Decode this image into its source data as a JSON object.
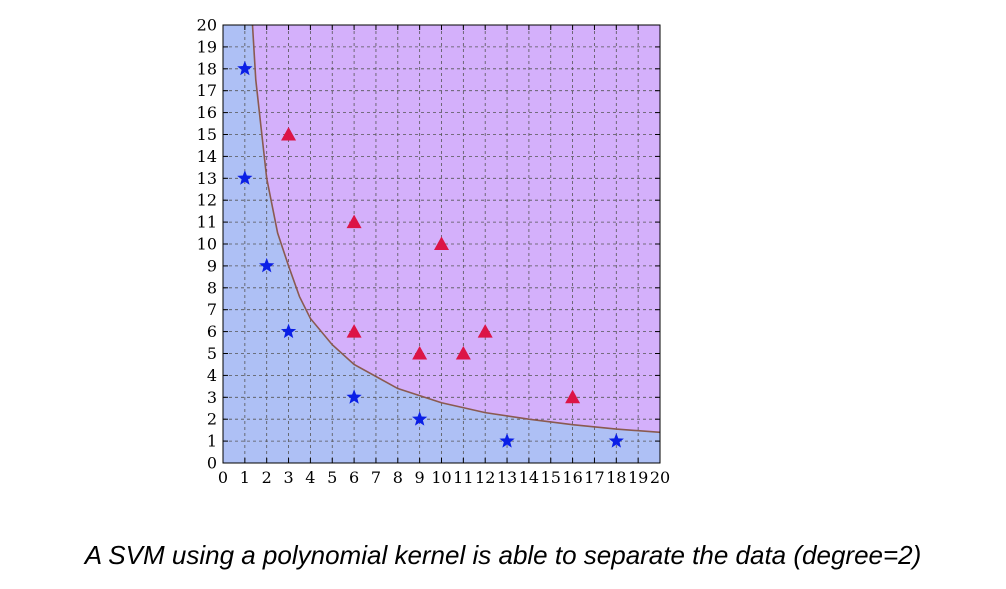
{
  "caption": "A SVM using a polynomial kernel is able to separate the data (degree=2)",
  "colors": {
    "region_low": "#aec0f5",
    "region_high": "#d4b0fb",
    "boundary": "#8a5a50",
    "star": "#0a1ee6",
    "triangle": "#dc1446",
    "grid": "#555555"
  },
  "chart_data": {
    "type": "scatter",
    "xlim": [
      0,
      20
    ],
    "ylim": [
      0,
      20
    ],
    "x_ticks": [
      0,
      1,
      2,
      3,
      4,
      5,
      6,
      7,
      8,
      9,
      10,
      11,
      12,
      13,
      14,
      15,
      16,
      17,
      18,
      19,
      20
    ],
    "y_ticks": [
      0,
      1,
      2,
      3,
      4,
      5,
      6,
      7,
      8,
      9,
      10,
      11,
      12,
      13,
      14,
      15,
      16,
      17,
      18,
      19,
      20
    ],
    "grid": true,
    "series": [
      {
        "marker": "star",
        "color": "#0a1ee6",
        "points": [
          [
            1,
            18
          ],
          [
            1,
            13
          ],
          [
            2,
            9
          ],
          [
            3,
            6
          ],
          [
            6,
            3
          ],
          [
            9,
            2
          ],
          [
            13,
            1
          ],
          [
            18,
            1
          ]
        ]
      },
      {
        "marker": "triangle",
        "color": "#dc1446",
        "points": [
          [
            3,
            15
          ],
          [
            6,
            11
          ],
          [
            10,
            10
          ],
          [
            6,
            6
          ],
          [
            9,
            5
          ],
          [
            11,
            5
          ],
          [
            12,
            6
          ],
          [
            16,
            3
          ]
        ]
      }
    ],
    "decision_boundary": {
      "points": [
        [
          1.35,
          20
        ],
        [
          1.5,
          17.5
        ],
        [
          2,
          13
        ],
        [
          2.5,
          10.5
        ],
        [
          3,
          9
        ],
        [
          3.5,
          7.6
        ],
        [
          4,
          6.6
        ],
        [
          5,
          5.4
        ],
        [
          6,
          4.5
        ],
        [
          8,
          3.4
        ],
        [
          10,
          2.75
        ],
        [
          12,
          2.3
        ],
        [
          14,
          2
        ],
        [
          16,
          1.75
        ],
        [
          18,
          1.55
        ],
        [
          20,
          1.4
        ]
      ]
    }
  }
}
